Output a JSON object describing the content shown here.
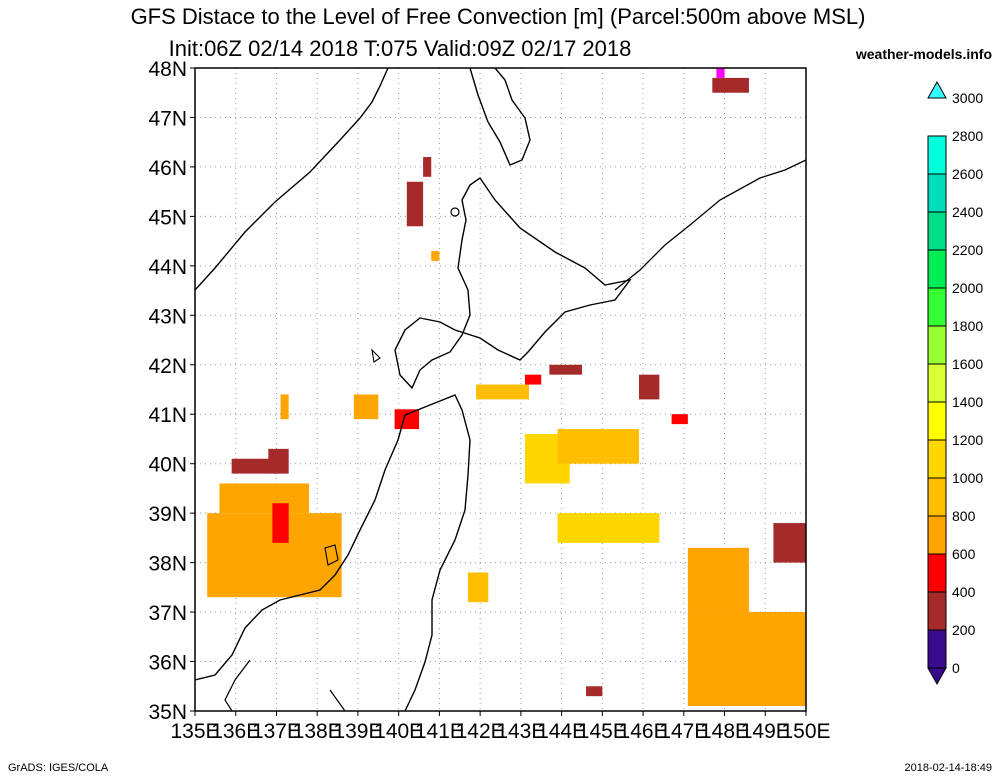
{
  "header": {
    "title_line1": "GFS Distace to the Level of Free Convection [m] (Parcel:500m above MSL)",
    "title_line2": "Init:06Z 02/14 2018 T:075 Valid:09Z 02/17 2018",
    "brand": "weather-models.info"
  },
  "footer": {
    "left": "GrADS: IGES/COLA",
    "right": "2018-02-14-18:49"
  },
  "chart_data": {
    "type": "heatmap",
    "title": "GFS Distace to the Level of Free Convection [m] (Parcel:500m above MSL)",
    "subtitle": "Init:06Z 02/14 2018 T:075 Valid:09Z 02/17 2018",
    "x_ticks": [
      "135E",
      "136E",
      "137E",
      "138E",
      "139E",
      "140E",
      "141E",
      "142E",
      "143E",
      "144E",
      "145E",
      "146E",
      "147E",
      "148E",
      "149E",
      "150E"
    ],
    "y_ticks": [
      "48N",
      "47N",
      "46N",
      "45N",
      "44N",
      "43N",
      "42N",
      "41N",
      "40N",
      "39N",
      "38N",
      "37N",
      "36N",
      "35N"
    ],
    "xlim": [
      135,
      150
    ],
    "ylim": [
      35,
      48
    ],
    "grid": true,
    "colorbar": {
      "levels": [
        0,
        200,
        400,
        600,
        800,
        1000,
        1200,
        1400,
        1600,
        1800,
        2000,
        2200,
        2400,
        2600,
        2800,
        3000
      ],
      "labels": [
        "0",
        "200",
        "400",
        "600",
        "800",
        "1000",
        "1200",
        "1400",
        "1600",
        "1800",
        "2000",
        "2200",
        "2400",
        "2600",
        "2800",
        "3000"
      ],
      "colors": [
        "#3a0a8c",
        "#ff00ff",
        "#a52a2a",
        "#ff0000",
        "#ffa500",
        "#ffbf00",
        "#ffd700",
        "#ffff00",
        "#d7ff33",
        "#99ff33",
        "#33ff33",
        "#00ee55",
        "#00dd88",
        "#00ddbb",
        "#00ffdd",
        "#33ffff"
      ]
    },
    "cells": [
      {
        "lon": [
          135.3,
          138.6
        ],
        "lat": [
          37.3,
          39.0
        ],
        "value": 900
      },
      {
        "lon": [
          135.6,
          137.8
        ],
        "lat": [
          39.0,
          39.6
        ],
        "value": 850
      },
      {
        "lon": [
          135.9,
          137.2
        ],
        "lat": [
          39.8,
          40.1
        ],
        "value": 500
      },
      {
        "lon": [
          136.8,
          137.3
        ],
        "lat": [
          39.8,
          40.3
        ],
        "value": 550
      },
      {
        "lon": [
          136.9,
          137.3
        ],
        "lat": [
          38.4,
          39.2
        ],
        "value": 600
      },
      {
        "lon": [
          137.1,
          137.3
        ],
        "lat": [
          40.9,
          41.4
        ],
        "value": 950
      },
      {
        "lon": [
          138.9,
          139.5
        ],
        "lat": [
          40.9,
          41.4
        ],
        "value": 900
      },
      {
        "lon": [
          139.9,
          140.5
        ],
        "lat": [
          40.7,
          41.1
        ],
        "value": 650
      },
      {
        "lon": [
          140.2,
          140.6
        ],
        "lat": [
          44.8,
          45.7
        ],
        "value": 400
      },
      {
        "lon": [
          140.6,
          140.8
        ],
        "lat": [
          45.8,
          46.2
        ],
        "value": 550
      },
      {
        "lon": [
          140.8,
          141.0
        ],
        "lat": [
          44.1,
          44.3
        ],
        "value": 800
      },
      {
        "lon": [
          141.9,
          143.2
        ],
        "lat": [
          41.3,
          41.6
        ],
        "value": 1050
      },
      {
        "lon": [
          143.1,
          143.5
        ],
        "lat": [
          41.6,
          41.8
        ],
        "value": 600
      },
      {
        "lon": [
          143.7,
          144.5
        ],
        "lat": [
          41.8,
          42.0
        ],
        "value": 500
      },
      {
        "lon": [
          143.1,
          144.2
        ],
        "lat": [
          39.6,
          40.6
        ],
        "value": 1200
      },
      {
        "lon": [
          143.9,
          145.9
        ],
        "lat": [
          40.0,
          40.7
        ],
        "value": 1150
      },
      {
        "lon": [
          143.9,
          146.4
        ],
        "lat": [
          38.4,
          39.0
        ],
        "value": 1250
      },
      {
        "lon": [
          145.9,
          146.4
        ],
        "lat": [
          41.3,
          41.8
        ],
        "value": 450
      },
      {
        "lon": [
          146.7,
          147.1
        ],
        "lat": [
          40.8,
          41.0
        ],
        "value": 650
      },
      {
        "lon": [
          147.7,
          148.6
        ],
        "lat": [
          47.5,
          47.8
        ],
        "value": 400
      },
      {
        "lon": [
          147.8,
          148.0
        ],
        "lat": [
          47.8,
          48.0
        ],
        "value": 200
      },
      {
        "lon": [
          147.1,
          150.0
        ],
        "lat": [
          35.1,
          37.0
        ],
        "value": 850
      },
      {
        "lon": [
          147.1,
          148.6
        ],
        "lat": [
          37.0,
          38.3
        ],
        "value": 850
      },
      {
        "lon": [
          149.2,
          150.0
        ],
        "lat": [
          38.0,
          38.8
        ],
        "value": 550
      },
      {
        "lon": [
          144.6,
          145.0
        ],
        "lat": [
          35.3,
          35.5
        ],
        "value": 550
      },
      {
        "lon": [
          141.7,
          142.2
        ],
        "lat": [
          37.2,
          37.8
        ],
        "value": 1150
      }
    ]
  }
}
